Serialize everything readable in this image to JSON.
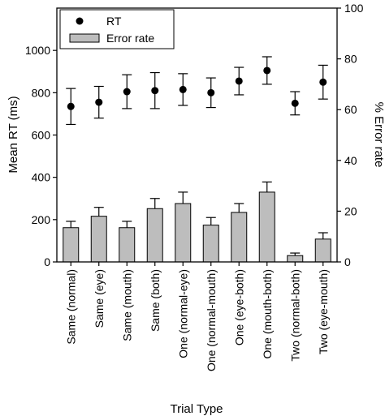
{
  "chart_data": {
    "type": "bar",
    "xlabel": "Trial Type",
    "ylabel": "Mean RT (ms)",
    "y2label": "% Error rate",
    "ylim": [
      0,
      1200
    ],
    "y_ticks": [
      0,
      200,
      400,
      600,
      800,
      1000
    ],
    "y2lim": [
      0,
      100
    ],
    "y2_ticks": [
      0,
      20,
      40,
      60,
      80,
      100
    ],
    "grid": false,
    "legend_position": "top-left",
    "categories": [
      "Same (normal)",
      "Same (eye)",
      "Same (mouth)",
      "Same (both)",
      "One (normal-eye)",
      "One (normal-mouth)",
      "One (eye-both)",
      "One (mouth-both)",
      "Two (normal-both)",
      "Two (eye-mouth)"
    ],
    "series": [
      {
        "name": "RT",
        "kind": "scatter",
        "axis": "left",
        "values": [
          735,
          755,
          805,
          810,
          815,
          800,
          855,
          905,
          750,
          850
        ],
        "error": [
          85,
          75,
          80,
          85,
          75,
          70,
          65,
          65,
          55,
          80
        ]
      },
      {
        "name": "Error rate",
        "kind": "bar",
        "axis": "right",
        "color": "#bdbdbd",
        "values": [
          13.5,
          18,
          13.5,
          21,
          23,
          14.5,
          19.5,
          27.5,
          2.5,
          9
        ],
        "error": [
          2.5,
          3.5,
          2.5,
          4,
          4.5,
          3,
          3.5,
          4,
          1,
          2.5
        ]
      }
    ]
  }
}
